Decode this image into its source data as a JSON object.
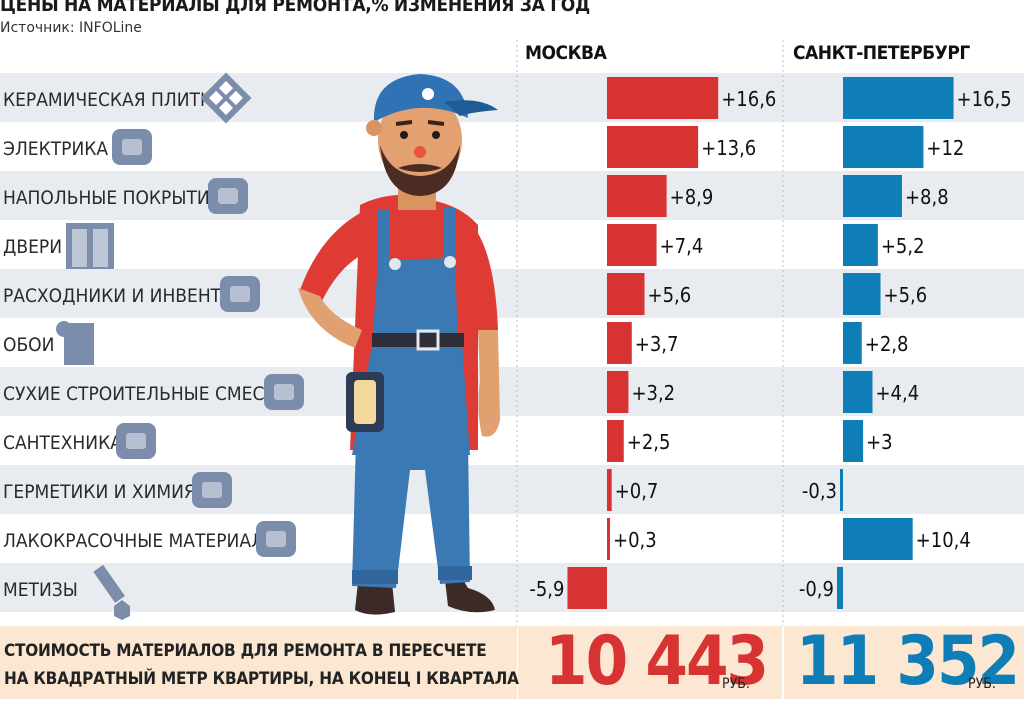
{
  "title": "ЦЕНЫ НА МАТЕРИАЛЫ ДЛЯ РЕМОНТА,% ИЗМЕНЕНИЯ ЗА ГОД",
  "source": "Источник: INFOLine",
  "colors": {
    "moscow": "#d63332",
    "spb": "#0f7db6",
    "row_alt": "#e8ecf1",
    "footer": "#fbe7d2",
    "icon": "#7b8dab"
  },
  "chart_data": {
    "type": "bar",
    "orientation": "horizontal",
    "unit": "%",
    "categories": [
      "КЕРАМИЧЕСКАЯ ПЛИТКА",
      "ЭЛЕКТРИКА",
      "НАПОЛЬНЫЕ ПОКРЫТИЯ",
      "ДВЕРИ",
      "РАСХОДНИКИ И ИНВЕНТАРЬ",
      "ОБОИ",
      "СУХИЕ СТРОИТЕЛЬНЫЕ СМЕСИ",
      "САНТЕХНИКА",
      "ГЕРМЕТИКИ И ХИМИЯ",
      "ЛАКОКРАСОЧНЫЕ МАТЕРИАЛЫ",
      "МЕТИЗЫ"
    ],
    "icons": [
      "tile-icon",
      "socket-icon",
      "flooring-icon",
      "door-icon",
      "tools-icon",
      "wallpaper-icon",
      "wheelbarrow-icon",
      "faucet-icon",
      "sealant-gun-icon",
      "paint-icon",
      "bolt-nut-icon"
    ],
    "series": [
      {
        "name": "МОСКВА",
        "values": [
          16.6,
          13.6,
          8.9,
          7.4,
          5.6,
          3.7,
          3.2,
          2.5,
          0.7,
          0.3,
          -5.9
        ],
        "labels": [
          "+16,6",
          "+13,6",
          "+8,9",
          "+7,4",
          "+5,6",
          "+3,7",
          "+3,2",
          "+2,5",
          "+0,7",
          "+0,3",
          "-5,9"
        ]
      },
      {
        "name": "САНКТ-ПЕТЕРБУРГ",
        "values": [
          16.5,
          12,
          8.8,
          5.2,
          5.6,
          2.8,
          4.4,
          3,
          -0.3,
          10.4,
          -0.9
        ],
        "labels": [
          "+16,5",
          "+12",
          "+8,8",
          "+5,2",
          "+5,6",
          "+2,8",
          "+4,4",
          "+3",
          "-0,3",
          "+10,4",
          "-0,9"
        ]
      }
    ]
  },
  "footer": {
    "text_line1": "СТОИМОСТЬ МАТЕРИАЛОВ ДЛЯ РЕМОНТА В ПЕРЕСЧЕТЕ",
    "text_line2": "НА КВАДРАТНЫЙ МЕТР КВАРТИРЫ, НА КОНЕЦ I КВАРТАЛА",
    "moscow_value": "10 443",
    "spb_value": "11 352",
    "unit": "РУБ."
  }
}
